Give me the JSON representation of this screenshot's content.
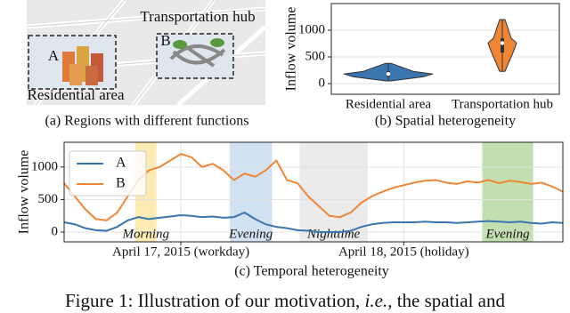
{
  "panel_a": {
    "hub": "Transportation hub",
    "b": "B",
    "a": "A",
    "residential": "Residential area",
    "caption": "(a) Regions with different functions"
  },
  "chart_data": [
    {
      "type": "violin",
      "ylabel": "Inflow volume",
      "caption": "(b) Spatial heterogeneity",
      "categories": [
        "Residential area",
        "Transportation hub"
      ],
      "stats": [
        {
          "min": 50,
          "q1": 130,
          "median": 180,
          "q3": 230,
          "max": 380
        },
        {
          "min": 230,
          "q1": 580,
          "median": 760,
          "q3": 850,
          "max": 1200
        }
      ],
      "colors": [
        "#3b75af",
        "#ef8636"
      ],
      "ylim": [
        -200,
        1500
      ],
      "yticks": [
        0,
        500,
        1000
      ],
      "grid": true
    },
    {
      "type": "line",
      "ylabel": "Inflow volume",
      "caption": "(c) Temporal heterogeneity",
      "x": [
        0,
        1,
        2,
        3,
        4,
        5,
        6,
        7,
        8,
        9,
        10,
        11,
        12,
        13,
        14,
        15,
        16,
        17,
        18,
        19,
        20,
        21,
        22,
        23,
        24,
        25,
        26,
        27,
        28,
        29,
        30,
        31,
        32,
        33,
        34,
        35,
        36,
        37,
        38,
        39,
        40,
        41,
        42,
        43,
        44,
        45,
        46,
        47
      ],
      "series": [
        {
          "name": "A",
          "color": "#3b75af",
          "values": [
            150,
            120,
            60,
            30,
            20,
            80,
            180,
            230,
            200,
            220,
            240,
            260,
            250,
            230,
            240,
            220,
            230,
            300,
            200,
            120,
            80,
            60,
            30,
            20,
            0,
            0,
            0,
            20,
            80,
            120,
            140,
            150,
            150,
            150,
            160,
            150,
            150,
            140,
            150,
            160,
            170,
            160,
            150,
            160,
            140,
            130,
            150,
            140
          ]
        },
        {
          "name": "B",
          "color": "#ef8636",
          "values": [
            750,
            550,
            350,
            200,
            180,
            300,
            550,
            800,
            950,
            1000,
            1100,
            1200,
            1150,
            1000,
            1050,
            950,
            800,
            900,
            850,
            950,
            1100,
            800,
            750,
            550,
            400,
            250,
            230,
            300,
            450,
            550,
            620,
            680,
            720,
            760,
            790,
            800,
            760,
            740,
            780,
            760,
            800,
            750,
            790,
            770,
            740,
            760,
            700,
            620
          ]
        }
      ],
      "xlim": [
        0,
        47
      ],
      "ylim": [
        -150,
        1380
      ],
      "yticks": [
        0,
        500,
        1000
      ],
      "xticks": [
        {
          "value": 11,
          "label": "April 17, 2015 (workday)"
        },
        {
          "value": 32,
          "label": "April 18, 2015 (holiday)"
        }
      ],
      "grid": true,
      "legend": "upper left",
      "bands": [
        {
          "label": "Morning",
          "start": 6.7,
          "end": 8.7,
          "color": "#fbe9a6"
        },
        {
          "label": "Evening",
          "start": 15.6,
          "end": 19.6,
          "color": "#c9dcf0"
        },
        {
          "label": "Nighttime",
          "start": 22.2,
          "end": 28.6,
          "color": "#e8e8e8"
        },
        {
          "label": "Evening",
          "start": 39.4,
          "end": 44.2,
          "color": "#b8d9a5"
        }
      ]
    }
  ],
  "figure_caption": [
    "Figure 1: Illustration of our motivation, ",
    "i.e.,",
    " the spatial and"
  ]
}
